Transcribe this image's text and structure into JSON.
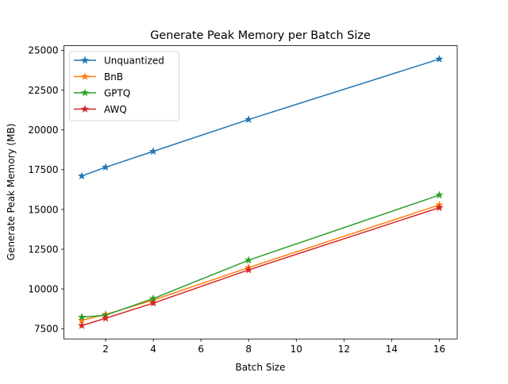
{
  "chart_data": {
    "type": "line",
    "title": "Generate Peak Memory per Batch Size",
    "xlabel": "Batch Size",
    "ylabel": "Generate Peak Memory (MB)",
    "xlim": [
      0.25,
      16.75
    ],
    "ylim": [
      6860,
      25290
    ],
    "xticks": [
      2,
      4,
      6,
      8,
      10,
      12,
      14,
      16
    ],
    "yticks": [
      7500,
      10000,
      12500,
      15000,
      17500,
      20000,
      22500,
      25000
    ],
    "grid": false,
    "legend_position": "top-left",
    "marker": "star",
    "x": [
      1,
      2,
      4,
      8,
      16
    ],
    "series": [
      {
        "name": "Unquantized",
        "color": "#1f77b4",
        "values": [
          17100,
          17650,
          18650,
          20650,
          24450
        ]
      },
      {
        "name": "BnB",
        "color": "#ff7f0e",
        "values": [
          8030,
          8400,
          9300,
          11350,
          15280
        ]
      },
      {
        "name": "GPTQ",
        "color": "#2ca02c",
        "values": [
          8230,
          8350,
          9400,
          11810,
          15900
        ]
      },
      {
        "name": "AWQ",
        "color": "#d62728",
        "values": [
          7700,
          8160,
          9110,
          11200,
          15110
        ]
      }
    ]
  }
}
